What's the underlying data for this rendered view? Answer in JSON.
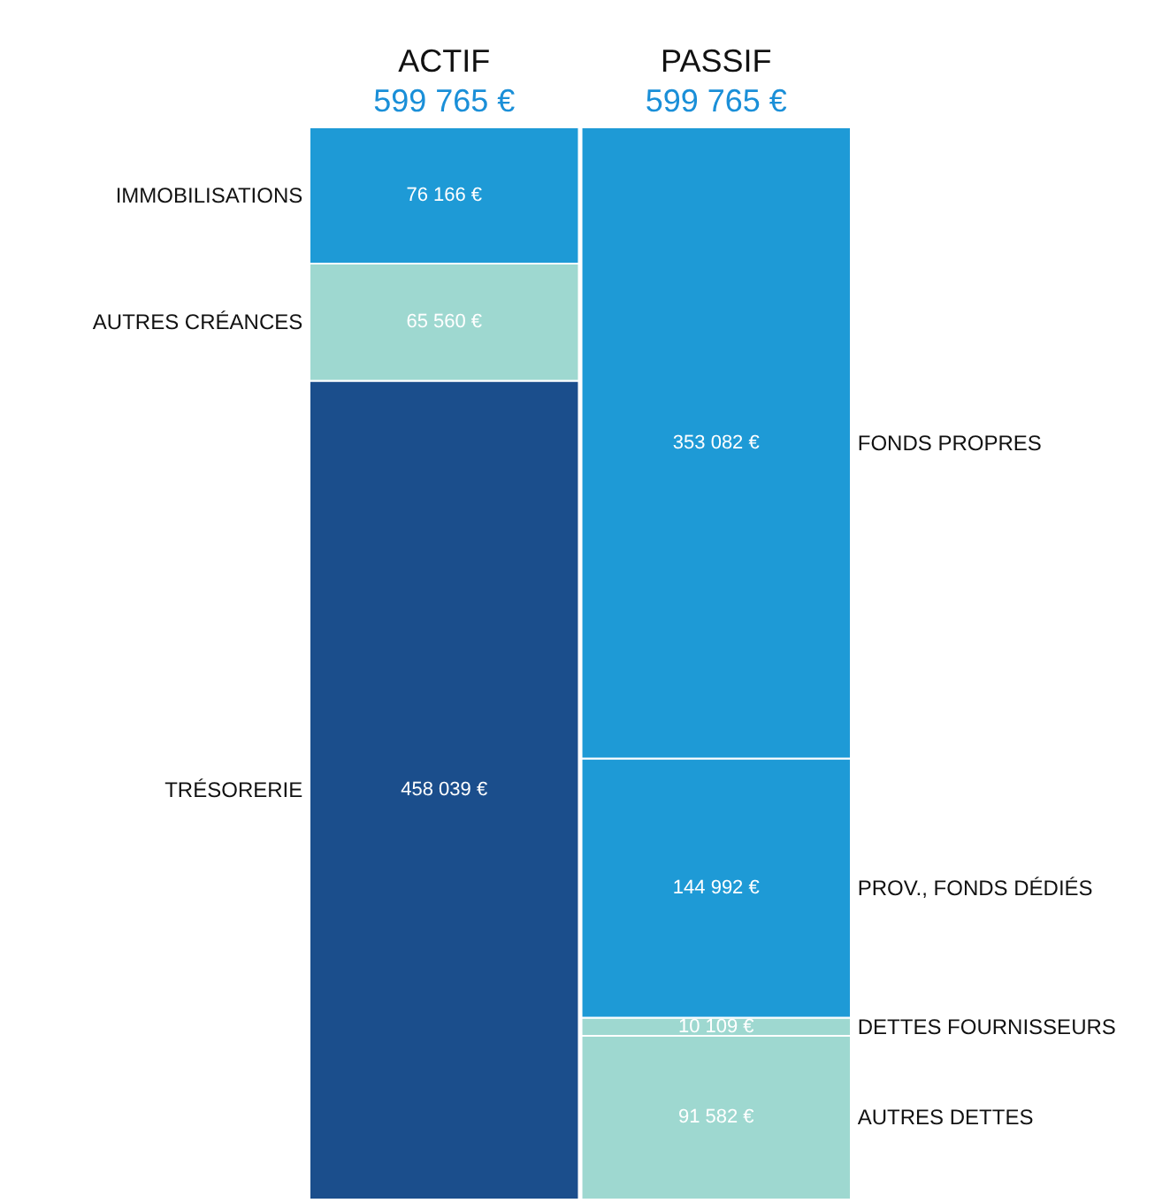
{
  "chart_data": {
    "type": "bar",
    "stacked": true,
    "categories": [
      "ACTIF",
      "PASSIF"
    ],
    "totals": [
      "599 765 €",
      "599 765 €"
    ],
    "series": [
      {
        "name": "TRÉSORERIE",
        "color": "#1b4e8c",
        "values": [
          458039,
          null
        ],
        "value_labels": [
          "458 039 €",
          null
        ]
      },
      {
        "name": "AUTRES CRÉANCES",
        "color": "#9ed8d0",
        "values": [
          65560,
          null
        ],
        "value_labels": [
          "65 560 €",
          null
        ]
      },
      {
        "name": "IMMOBILISATIONS",
        "color": "#1e9ad6",
        "values": [
          76166,
          null
        ],
        "value_labels": [
          "76 166 €",
          null
        ]
      },
      {
        "name": "AUTRES DETTES",
        "color": "#9ed8d0",
        "values": [
          null,
          91582
        ],
        "value_labels": [
          null,
          "91 582 €"
        ]
      },
      {
        "name": "DETTES FOURNISSEURS",
        "color": "#9ed8d0",
        "values": [
          null,
          10109
        ],
        "value_labels": [
          null,
          "10 109 €"
        ]
      },
      {
        "name": "PROV., FONDS DÉDIÉS",
        "color": "#1e9ad6",
        "values": [
          null,
          144992
        ],
        "value_labels": [
          null,
          "144 992 €"
        ]
      },
      {
        "name": "FONDS PROPRES",
        "color": "#1e9ad6",
        "values": [
          null,
          353082
        ],
        "value_labels": [
          null,
          "353 082 €"
        ]
      }
    ]
  }
}
